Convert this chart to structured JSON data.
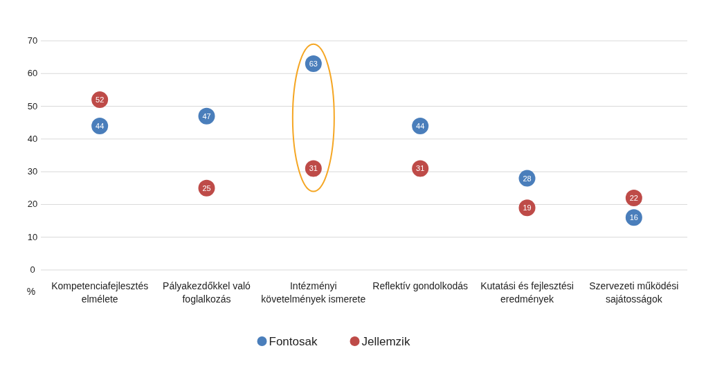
{
  "chart_data": {
    "type": "scatter",
    "ylabel": "%",
    "categories": [
      "Kompetenciafejlesztés elmélete",
      "Pályakezdőkkel való foglalkozás",
      "Intézményi követelmények ismerete",
      "Reflektív gondolkodás",
      "Kutatási és fejlesztési eredmények",
      "Szervezeti működési sajátosságok"
    ],
    "series": [
      {
        "name": "Fontosak",
        "color": "#4a7ebb",
        "values": [
          44,
          47,
          63,
          44,
          28,
          16
        ]
      },
      {
        "name": "Jellemzik",
        "color": "#be4b48",
        "values": [
          52,
          25,
          31,
          31,
          19,
          22
        ]
      }
    ],
    "ylim": [
      0,
      70
    ],
    "yticks": [
      0,
      10,
      20,
      30,
      40,
      50,
      60,
      70
    ],
    "grid": "y",
    "marker": "circle",
    "data_labels": true,
    "legend": "bottom"
  }
}
